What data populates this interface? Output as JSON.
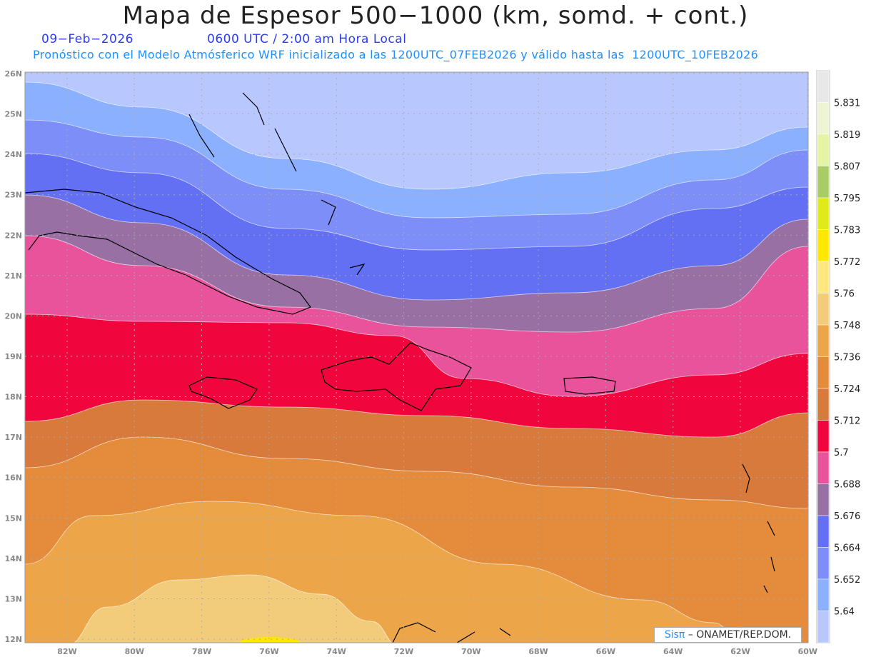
{
  "header": {
    "title": "Mapa de Espesor 500−1000 (km, somd. + cont.)",
    "date": "09−Feb−2026",
    "time": "0600 UTC / 2:00 am Hora Local",
    "description": "Pronóstico con el Modelo Atmósferico WRF inicializado a las 1200UTC_07FEB2026 y válido hasta las  1200UTC_10FEB2026"
  },
  "map": {
    "lat_labels": [
      "26N",
      "25N",
      "24N",
      "23N",
      "22N",
      "21N",
      "20N",
      "19N",
      "18N",
      "17N",
      "16N",
      "15N",
      "14N",
      "13N",
      "12N"
    ],
    "lon_labels": [
      "82W",
      "80W",
      "78W",
      "76W",
      "74W",
      "72W",
      "70W",
      "68W",
      "66W",
      "64W",
      "62W",
      "60W"
    ]
  },
  "colorbar": {
    "labels": [
      "5.831",
      "5.819",
      "5.807",
      "5.795",
      "5.783",
      "5.772",
      "5.76",
      "5.748",
      "5.736",
      "5.724",
      "5.712",
      "5.7",
      "5.688",
      "5.676",
      "5.664",
      "5.652",
      "5.64"
    ],
    "colors": [
      "#e8e8e8",
      "#eef5d2",
      "#e4f4a2",
      "#a8cc66",
      "#e0ea18",
      "#ffe800",
      "#ffe880",
      "#f2cc7a",
      "#eca548",
      "#e48c3c",
      "#d87a3c",
      "#f0053c",
      "#e8539c",
      "#9870a4",
      "#6470f4",
      "#7e8ef8",
      "#8ab0ff",
      "#b8c8ff"
    ]
  },
  "credit": {
    "brand": "Sisπ",
    "text": " –  ONAMET/REP.DOM."
  }
}
